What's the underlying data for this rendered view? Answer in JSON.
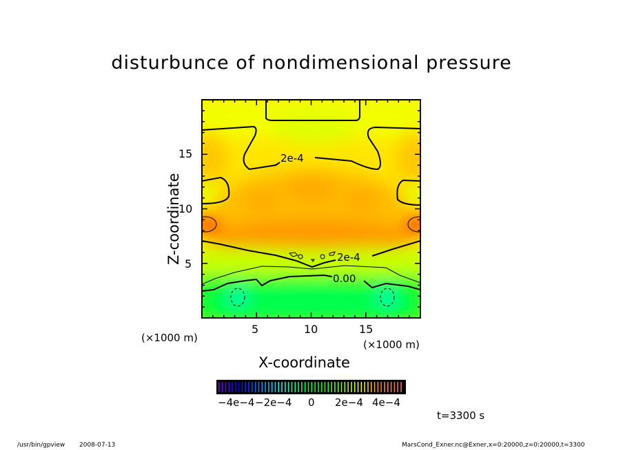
{
  "chart_data": {
    "type": "heatmap",
    "subtype": "filled contour",
    "title": "disturbunce of nondimensional pressure",
    "xlabel": "X-coordinate",
    "ylabel": "Z-coordinate",
    "xunit": "(×1000 m)",
    "yunit": "(×1000 m)",
    "xlim": [
      0,
      20
    ],
    "ylim": [
      0,
      20
    ],
    "xticks": [
      "5",
      "10",
      "15"
    ],
    "yticks": [
      "5",
      "10",
      "15"
    ],
    "contour_labels": [
      "2e-4",
      "2e-4",
      "0.00"
    ],
    "contour_levels": [
      -0.0002,
      0,
      0.0002,
      0.0004
    ],
    "colorbar": {
      "range": [
        -0.0005,
        0.0005
      ],
      "tick_labels": [
        "−4e−4",
        "−2e−4",
        "0",
        "2e−4",
        "4e−4"
      ]
    }
  },
  "annotations": {
    "time": "t=3300 s",
    "program": "/usr/bin/gpview",
    "date": "2008-07-13",
    "source": "MarsCond_Exner.nc@Exner,x=0:20000,z=0:20000,t=3300"
  }
}
